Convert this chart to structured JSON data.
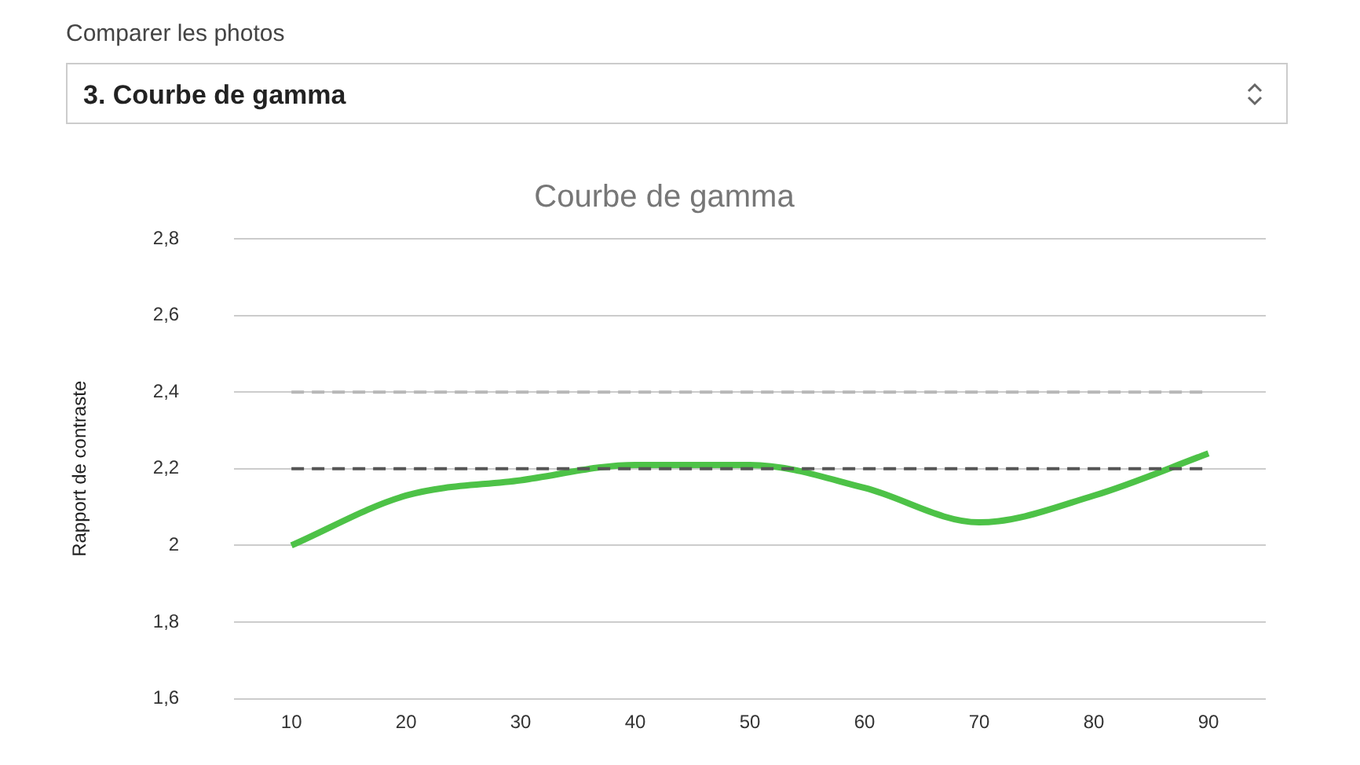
{
  "chart_data": {
    "type": "line",
    "title": "Courbe de gamma",
    "ylabel": "Rapport de contraste",
    "annotations": [
      "Comparer les photos",
      "3. Courbe de gamma"
    ],
    "categories": [
      "10",
      "20",
      "30",
      "40",
      "50",
      "60",
      "70",
      "80",
      "90"
    ],
    "series": [
      {
        "color": "#4dc247",
        "values": [
          2.0,
          2.13,
          2.17,
          2.21,
          2.21,
          2.15,
          2.06,
          2.13,
          2.24
        ]
      }
    ],
    "ylim": [
      1.6,
      2.8
    ],
    "yticks": [
      {
        "value": 1.6,
        "label": "1,6"
      },
      {
        "value": 1.8,
        "label": "1,8"
      },
      {
        "value": 2,
        "label": "2"
      },
      {
        "value": 2.2,
        "label": "2,2"
      },
      {
        "value": 2.4,
        "label": "2,4"
      },
      {
        "value": 2.6,
        "label": "2,6"
      },
      {
        "value": 2.8,
        "label": "2,8"
      }
    ],
    "ref_lines": [
      {
        "axis": "y",
        "value": 2.4,
        "color": "#b7b7b7",
        "line_style": "dashed"
      },
      {
        "axis": "y",
        "value": 2.2,
        "color": "#555555",
        "line_style": "dashed"
      }
    ],
    "grid": "y",
    "legend": false,
    "marker": "none",
    "line_style": "solid"
  }
}
